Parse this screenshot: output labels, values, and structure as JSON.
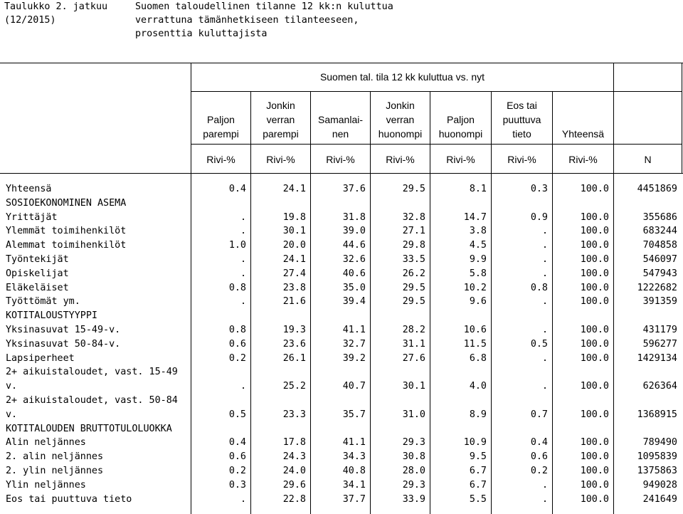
{
  "caption": {
    "table_label": "Taulukko 2. jatkuu",
    "table_code": "(12/2015)",
    "title_lines": [
      "Suomen taloudellinen tilanne 12 kk:n kuluttua",
      "verrattuna tämänhetkiseen tilanteeseen,",
      "prosenttia kuluttajista"
    ]
  },
  "header": {
    "group_label": "Suomen tal. tila 12 kk kuluttua vs. nyt",
    "columns": [
      {
        "lines": [
          "",
          "Paljon",
          "parempi"
        ],
        "unit": "Rivi-%"
      },
      {
        "lines": [
          "Jonkin",
          "verran",
          "parempi"
        ],
        "unit": "Rivi-%"
      },
      {
        "lines": [
          "",
          "Samanlai-",
          "nen"
        ],
        "unit": "Rivi-%"
      },
      {
        "lines": [
          "Jonkin",
          "verran",
          "huonompi"
        ],
        "unit": "Rivi-%"
      },
      {
        "lines": [
          "",
          "Paljon",
          "huonompi"
        ],
        "unit": "Rivi-%"
      },
      {
        "lines": [
          "Eos tai",
          "puuttuva",
          "tieto"
        ],
        "unit": "Rivi-%"
      },
      {
        "lines": [
          "",
          "",
          "Yhteensä"
        ],
        "unit": "Rivi-%"
      },
      {
        "lines": [
          "",
          "",
          ""
        ],
        "unit": "N"
      }
    ]
  },
  "rows": [
    {
      "label": "Yhteensä",
      "values": [
        "0.4",
        "24.1",
        "37.6",
        "29.5",
        "8.1",
        "0.3",
        "100.0",
        "4451869"
      ]
    },
    {
      "label": "SOSIOEKONOMINEN ASEMA",
      "values": [
        "",
        "",
        "",
        "",
        "",
        "",
        "",
        ""
      ]
    },
    {
      "label": "Yrittäjät",
      "values": [
        ".",
        "19.8",
        "31.8",
        "32.8",
        "14.7",
        "0.9",
        "100.0",
        "355686"
      ]
    },
    {
      "label": "Ylemmät toimihenkilöt",
      "values": [
        ".",
        "30.1",
        "39.0",
        "27.1",
        "3.8",
        ".",
        "100.0",
        "683244"
      ]
    },
    {
      "label": "Alemmat toimihenkilöt",
      "values": [
        "1.0",
        "20.0",
        "44.6",
        "29.8",
        "4.5",
        ".",
        "100.0",
        "704858"
      ]
    },
    {
      "label": "Työntekijät",
      "values": [
        ".",
        "24.1",
        "32.6",
        "33.5",
        "9.9",
        ".",
        "100.0",
        "546097"
      ]
    },
    {
      "label": "Opiskelijat",
      "values": [
        ".",
        "27.4",
        "40.6",
        "26.2",
        "5.8",
        ".",
        "100.0",
        "547943"
      ]
    },
    {
      "label": "Eläkeläiset",
      "values": [
        "0.8",
        "23.8",
        "35.0",
        "29.5",
        "10.2",
        "0.8",
        "100.0",
        "1222682"
      ]
    },
    {
      "label": "Työttömät ym.",
      "values": [
        ".",
        "21.6",
        "39.4",
        "29.5",
        "9.6",
        ".",
        "100.0",
        "391359"
      ]
    },
    {
      "label": "KOTITALOUSTYYPPI",
      "values": [
        "",
        "",
        "",
        "",
        "",
        "",
        "",
        ""
      ]
    },
    {
      "label": "Yksinasuvat 15-49-v.",
      "values": [
        "0.8",
        "19.3",
        "41.1",
        "28.2",
        "10.6",
        ".",
        "100.0",
        "431179"
      ]
    },
    {
      "label": "Yksinasuvat 50-84-v.",
      "values": [
        "0.6",
        "23.6",
        "32.7",
        "31.1",
        "11.5",
        "0.5",
        "100.0",
        "596277"
      ]
    },
    {
      "label": "Lapsiperheet",
      "values": [
        "0.2",
        "26.1",
        "39.2",
        "27.6",
        "6.8",
        ".",
        "100.0",
        "1429134"
      ]
    },
    {
      "label": "2+ aikuistaloudet, vast. 15-49",
      "values": [
        "",
        "",
        "",
        "",
        "",
        "",
        "",
        ""
      ]
    },
    {
      "label": "v.",
      "values": [
        ".",
        "25.2",
        "40.7",
        "30.1",
        "4.0",
        ".",
        "100.0",
        "626364"
      ]
    },
    {
      "label": "2+ aikuistaloudet, vast. 50-84",
      "values": [
        "",
        "",
        "",
        "",
        "",
        "",
        "",
        ""
      ]
    },
    {
      "label": "v.",
      "values": [
        "0.5",
        "23.3",
        "35.7",
        "31.0",
        "8.9",
        "0.7",
        "100.0",
        "1368915"
      ]
    },
    {
      "label": "KOTITALOUDEN BRUTTOTULOLUOKKA",
      "values": [
        "",
        "",
        "",
        "",
        "",
        "",
        "",
        ""
      ]
    },
    {
      "label": "Alin neljännes",
      "values": [
        "0.4",
        "17.8",
        "41.1",
        "29.3",
        "10.9",
        "0.4",
        "100.0",
        "789490"
      ]
    },
    {
      "label": "2. alin neljännes",
      "values": [
        "0.6",
        "24.3",
        "34.3",
        "30.8",
        "9.5",
        "0.6",
        "100.0",
        "1095839"
      ]
    },
    {
      "label": "2. ylin neljännes",
      "values": [
        "0.2",
        "24.0",
        "40.8",
        "28.0",
        "6.7",
        "0.2",
        "100.0",
        "1375863"
      ]
    },
    {
      "label": "Ylin neljännes",
      "values": [
        "0.3",
        "29.6",
        "34.1",
        "29.3",
        "6.7",
        ".",
        "100.0",
        "949028"
      ]
    },
    {
      "label": "Eos tai puuttuva tieto",
      "values": [
        ".",
        "22.8",
        "37.7",
        "33.9",
        "5.5",
        ".",
        "100.0",
        "241649"
      ]
    }
  ]
}
